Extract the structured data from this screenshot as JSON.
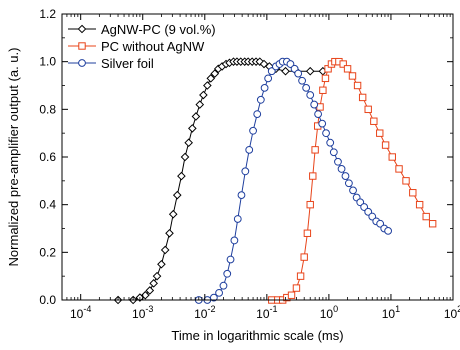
{
  "chart_data": {
    "type": "scatter",
    "xlabel": "Time in logarithmic scale (ms)",
    "ylabel": "Normalized pre-amplifier output (a. u.)",
    "xscale": "log",
    "xlim": [
      5e-05,
      100
    ],
    "ylim": [
      0.0,
      1.2
    ],
    "grid": false,
    "legend_position": "top-left",
    "x_ticks": [
      {
        "value": 0.0001,
        "base": "10",
        "exp": "-4"
      },
      {
        "value": 0.001,
        "base": "10",
        "exp": "-3"
      },
      {
        "value": 0.01,
        "base": "10",
        "exp": "-2"
      },
      {
        "value": 0.1,
        "base": "10",
        "exp": "-1"
      },
      {
        "value": 1,
        "base": "10",
        "exp": "0"
      },
      {
        "value": 10,
        "base": "10",
        "exp": "1"
      },
      {
        "value": 100,
        "base": "10",
        "exp": "2"
      }
    ],
    "y_ticks": [
      {
        "value": 0.0,
        "label": "0.0"
      },
      {
        "value": 0.2,
        "label": "0.2"
      },
      {
        "value": 0.4,
        "label": "0.4"
      },
      {
        "value": 0.6,
        "label": "0.6"
      },
      {
        "value": 0.8,
        "label": "0.8"
      },
      {
        "value": 1.0,
        "label": "1.0"
      },
      {
        "value": 1.2,
        "label": "1.2"
      }
    ],
    "series": [
      {
        "name": "AgNW-PC (9 vol.%)",
        "color": "#000000",
        "marker": "diamond",
        "x": [
          0.0004,
          0.0007,
          0.0009,
          0.0011,
          0.0013,
          0.0015,
          0.0017,
          0.002,
          0.0023,
          0.0027,
          0.0031,
          0.0036,
          0.0042,
          0.0048,
          0.0055,
          0.0063,
          0.0072,
          0.0083,
          0.0095,
          0.011,
          0.0125,
          0.0145,
          0.0165,
          0.019,
          0.022,
          0.025,
          0.029,
          0.033,
          0.038,
          0.044,
          0.05,
          0.058,
          0.067,
          0.077,
          0.09,
          0.11,
          0.14,
          0.2,
          0.3,
          0.5,
          0.8
        ],
        "y": [
          0.0,
          0.0,
          0.01,
          0.02,
          0.04,
          0.07,
          0.1,
          0.15,
          0.21,
          0.28,
          0.36,
          0.44,
          0.52,
          0.6,
          0.66,
          0.72,
          0.77,
          0.82,
          0.86,
          0.9,
          0.93,
          0.95,
          0.97,
          0.98,
          0.99,
          0.995,
          1.0,
          1.0,
          1.0,
          1.0,
          1.0,
          1.0,
          1.0,
          1.0,
          0.99,
          0.98,
          0.97,
          0.96,
          0.96,
          0.96,
          0.96
        ]
      },
      {
        "name": "PC without AgNW",
        "color": "#e8441a",
        "marker": "square",
        "x": [
          0.12,
          0.15,
          0.18,
          0.21,
          0.25,
          0.3,
          0.35,
          0.4,
          0.45,
          0.5,
          0.55,
          0.6,
          0.66,
          0.72,
          0.8,
          0.88,
          0.97,
          1.1,
          1.25,
          1.45,
          1.7,
          2.0,
          2.4,
          2.9,
          3.5,
          4.3,
          5.3,
          6.6,
          8.2,
          10.5,
          13.5,
          17.5,
          22.5,
          29,
          37,
          47
        ],
        "y": [
          0.0,
          0.0,
          0.0,
          0.01,
          0.02,
          0.05,
          0.1,
          0.18,
          0.28,
          0.4,
          0.52,
          0.63,
          0.73,
          0.81,
          0.88,
          0.93,
          0.97,
          0.99,
          1.0,
          1.0,
          0.99,
          0.97,
          0.94,
          0.9,
          0.85,
          0.8,
          0.75,
          0.7,
          0.65,
          0.6,
          0.55,
          0.5,
          0.45,
          0.4,
          0.35,
          0.32
        ]
      },
      {
        "name": "Silver foil",
        "color": "#1f3f9e",
        "marker": "circle",
        "x": [
          0.008,
          0.011,
          0.014,
          0.017,
          0.02,
          0.023,
          0.026,
          0.03,
          0.034,
          0.039,
          0.045,
          0.052,
          0.06,
          0.07,
          0.08,
          0.092,
          0.105,
          0.12,
          0.14,
          0.16,
          0.18,
          0.21,
          0.24,
          0.28,
          0.32,
          0.37,
          0.43,
          0.5,
          0.58,
          0.67,
          0.78,
          0.9,
          1.05,
          1.2,
          1.4,
          1.6,
          1.85,
          2.1,
          2.45,
          2.8,
          3.2,
          3.7,
          4.3,
          5.0,
          5.8,
          6.7,
          7.8,
          9.0
        ],
        "y": [
          0.0,
          0.0,
          0.01,
          0.03,
          0.06,
          0.11,
          0.17,
          0.25,
          0.34,
          0.44,
          0.54,
          0.63,
          0.71,
          0.78,
          0.84,
          0.89,
          0.93,
          0.96,
          0.98,
          0.99,
          1.0,
          1.0,
          0.99,
          0.97,
          0.95,
          0.92,
          0.89,
          0.86,
          0.82,
          0.78,
          0.74,
          0.7,
          0.66,
          0.62,
          0.58,
          0.55,
          0.52,
          0.49,
          0.46,
          0.43,
          0.41,
          0.39,
          0.37,
          0.35,
          0.33,
          0.32,
          0.3,
          0.29
        ]
      }
    ]
  }
}
